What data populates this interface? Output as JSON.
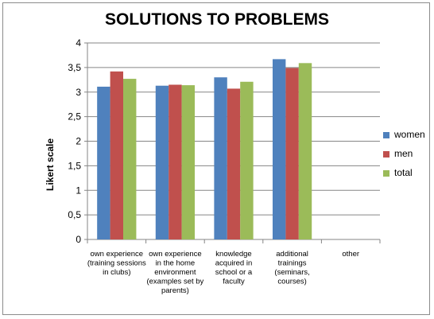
{
  "chart_data": {
    "type": "bar",
    "title": "SOLUTIONS TO PROBLEMS",
    "ylabel": "Likert scale",
    "xlabel": "",
    "ylim": [
      0,
      4
    ],
    "yticks": [
      "0",
      "0,5",
      "1",
      "1,5",
      "2",
      "2,5",
      "3",
      "3,5",
      "4"
    ],
    "grid": true,
    "legend_position": "right",
    "categories": [
      [
        "own experience",
        "(training sessions",
        "in clubs)"
      ],
      [
        "own experience",
        "in the home",
        "environment",
        "(examples set by",
        "parents)"
      ],
      [
        "knowledge",
        "acquired in",
        "school or a",
        "faculty"
      ],
      [
        "additional",
        "trainings",
        "(seminars,",
        "courses)"
      ],
      [
        "other"
      ]
    ],
    "series": [
      {
        "name": "women",
        "color": "#4f81bd",
        "values": [
          3.11,
          3.13,
          3.3,
          3.67,
          null
        ]
      },
      {
        "name": "men",
        "color": "#c0504d",
        "values": [
          3.42,
          3.15,
          3.07,
          3.49,
          null
        ]
      },
      {
        "name": "total",
        "color": "#9bbb59",
        "values": [
          3.27,
          3.14,
          3.21,
          3.59,
          null
        ]
      }
    ]
  }
}
